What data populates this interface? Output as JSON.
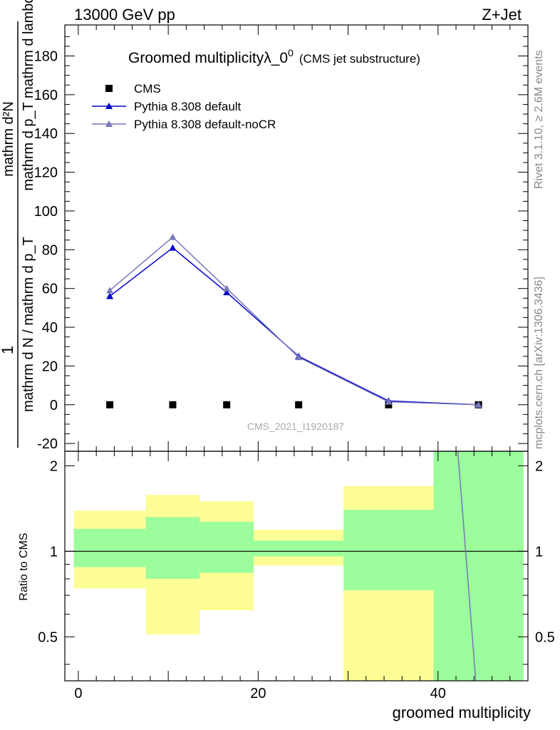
{
  "header": {
    "energy_label": "13000 GeV pp",
    "process_label": "Z+Jet"
  },
  "side_labels": {
    "rivet": "Rivet 3.1.10, ≥ 2.6M events",
    "mcplots": "mcplots.cern.ch [arXiv:1306.3436]"
  },
  "chart_data": [
    {
      "panel": "main",
      "type": "line",
      "title": "Groomed multiplicityλ_0",
      "title_superscript": "0",
      "title_note": "(CMS jet substructure)",
      "ylabel_top": "1",
      "ylabel": "mathrm d N / mathrm d p_T mathrm d p_T mathrm d lambda",
      "ylabel_fraction": {
        "numerator": "mathrm d²N",
        "denominator": "mathrm d p_T mathrm d lambda",
        "prefactor": "mathrm d N / mathrm d p_T"
      },
      "watermark": "CMS_2021_I1920187",
      "xlim": [
        -1.5,
        50
      ],
      "ylim": [
        -24,
        196
      ],
      "yticks": [
        -20,
        0,
        20,
        40,
        60,
        80,
        100,
        120,
        140,
        160,
        180
      ],
      "legend_position": "top-left",
      "series": [
        {
          "name": "CMS",
          "marker": "square",
          "color": "#000000",
          "x": [
            3.5,
            10.5,
            16.5,
            24.5,
            34.5,
            44.5
          ],
          "y": [
            0,
            0,
            0,
            0,
            0,
            0
          ]
        },
        {
          "name": "Pythia 8.308 default",
          "marker": "triangle",
          "color": "#0000cc",
          "x": [
            3.5,
            10.5,
            16.5,
            24.5,
            34.5,
            44.5
          ],
          "y": [
            56,
            81,
            58,
            25,
            2,
            0
          ]
        },
        {
          "name": "Pythia 8.308 default-noCR",
          "marker": "triangle",
          "color": "#7777bb",
          "x": [
            3.5,
            10.5,
            16.5,
            24.5,
            34.5,
            44.5
          ],
          "y": [
            59,
            86.5,
            60,
            24.5,
            1.5,
            0
          ]
        }
      ]
    },
    {
      "panel": "ratio",
      "type": "area",
      "ylabel": "Ratio to CMS",
      "xlabel": "groomed multiplicity",
      "ylim": [
        0.35,
        2.25
      ],
      "yticks": [
        0.5,
        1,
        2
      ],
      "xticks": [
        0,
        20,
        40
      ],
      "xlim": [
        -1.5,
        50
      ],
      "reference_line": 1,
      "band_colors": {
        "outer": "#fdfd96",
        "inner": "#9bfd9b"
      },
      "bins": [
        {
          "x": [
            -0.5,
            7.5
          ],
          "outer": [
            0.74,
            1.39
          ],
          "inner": [
            0.88,
            1.2
          ]
        },
        {
          "x": [
            7.5,
            13.5
          ],
          "outer": [
            0.51,
            1.58
          ],
          "inner": [
            0.8,
            1.32
          ]
        },
        {
          "x": [
            13.5,
            19.5
          ],
          "outer": [
            0.62,
            1.5
          ],
          "inner": [
            0.84,
            1.27
          ]
        },
        {
          "x": [
            19.5,
            29.5
          ],
          "outer": [
            0.89,
            1.19
          ],
          "inner": [
            0.96,
            1.09
          ]
        },
        {
          "x": [
            29.5,
            39.5
          ],
          "outer": [
            0.35,
            1.7
          ],
          "inner": [
            0.73,
            1.4
          ]
        },
        {
          "x": [
            39.5,
            49.5
          ],
          "outer": [
            0.35,
            2.25
          ],
          "inner": [
            0.35,
            2.25
          ]
        }
      ],
      "series": [
        {
          "name": "Pythia 8.308 default-noCR",
          "color": "#7777bb",
          "x": [
            42.2,
            44.2
          ],
          "y": [
            2.25,
            0.35
          ]
        }
      ]
    }
  ]
}
